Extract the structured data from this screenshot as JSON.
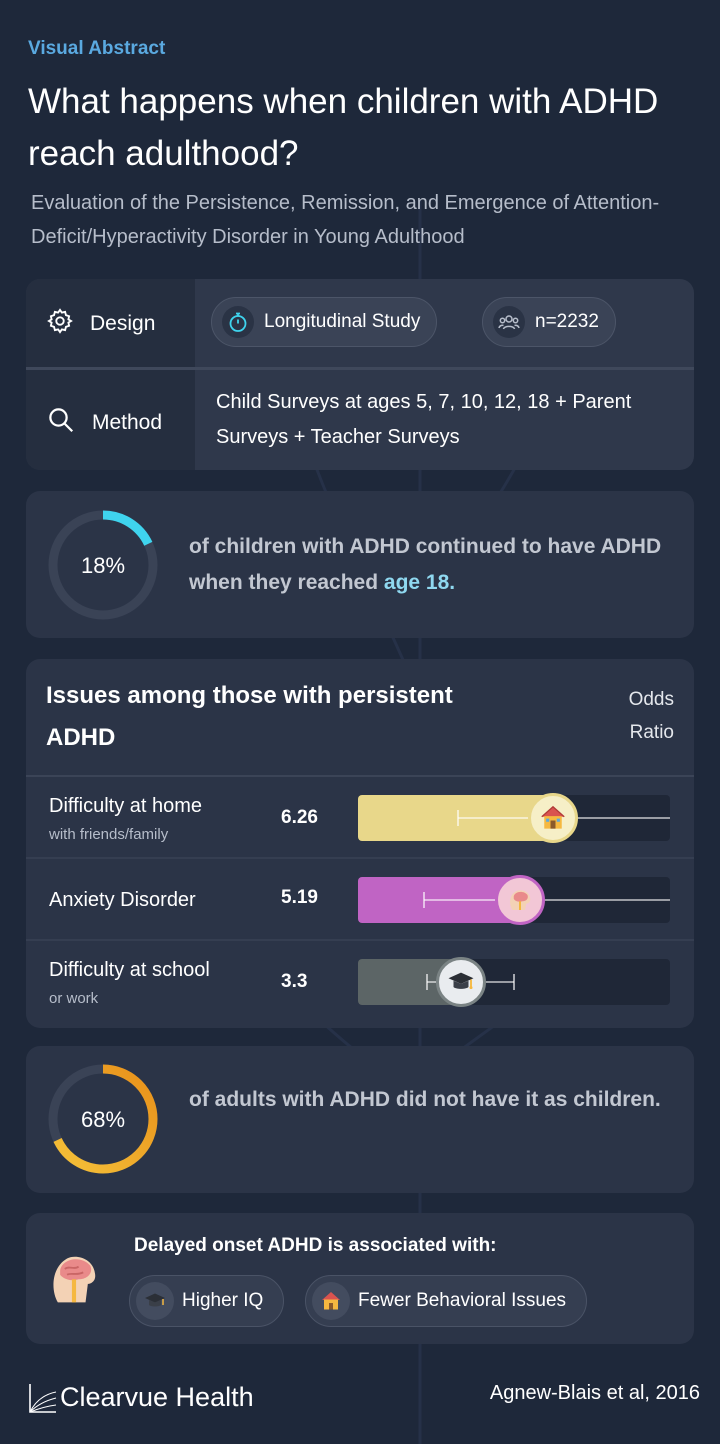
{
  "header": {
    "eyebrow": "Visual Abstract",
    "title": "What happens when children with ADHD reach adulthood?",
    "subtitle": "Evaluation of the Persistence, Remission, and Emergence of Attention-Deficit/Hyperactivity Disorder in Young Adulthood"
  },
  "design": {
    "label": "Design",
    "study_type": "Longitudinal Study",
    "sample_size": "n=2232",
    "icon": "gear-icon"
  },
  "method": {
    "label": "Method",
    "description": "Child Surveys at ages 5, 7, 10, 12, 18 + Parent Surveys + Teacher Surveys",
    "icon": "search-icon"
  },
  "persistence": {
    "percent_label": "18%",
    "percent_value": 18,
    "text_before": "of children with ADHD continued to have ADHD when they reached",
    "text_highlight": "age 18.",
    "color": "#3fd4ee"
  },
  "issues": {
    "title": "Issues among those with persistent ADHD",
    "odds_label": "Odds Ratio",
    "rows": [
      {
        "label": "Difficulty at home",
        "sub": "with friends/family",
        "value": "6.26",
        "odds": 6.26,
        "ci_low": 3.2,
        "ci_high": 10.0,
        "color": "#e8d78a",
        "icon": "house-icon"
      },
      {
        "label": "Anxiety Disorder",
        "sub": "",
        "value": "5.19",
        "odds": 5.19,
        "ci_low": 2.1,
        "ci_high": 10.0,
        "color": "#c064c4",
        "icon": "brain-icon"
      },
      {
        "label": "Difficulty at school",
        "sub": "or work",
        "value": "3.3",
        "odds": 3.3,
        "ci_low": 2.2,
        "ci_high": 5.0,
        "color": "#5c6566",
        "icon": "graduation-cap-icon"
      }
    ],
    "scale_max": 10
  },
  "emergence": {
    "percent_label": "68%",
    "percent_value": 68,
    "text": "of adults with ADHD did not have it as children.",
    "color": "#f0a722"
  },
  "delayed": {
    "title": "Delayed onset ADHD is associated with:",
    "tags": [
      "Higher IQ",
      "Fewer Behavioral Issues"
    ]
  },
  "footer": {
    "brand": "Clearvue Health",
    "citation": "Agnew-Blais et al, 2016"
  }
}
